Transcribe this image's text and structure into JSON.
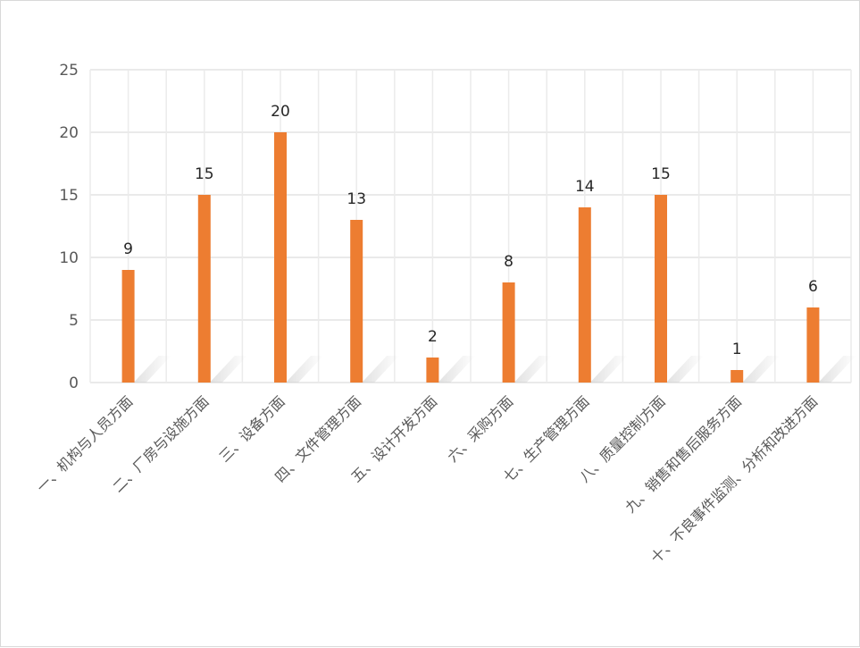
{
  "chart_data": {
    "type": "bar",
    "categories": [
      "一、机构与人员方面",
      "二、厂房与设施方面",
      "三、设备方面",
      "四、文件管理方面",
      "五、设计开发方面",
      "六、采购方面",
      "七、生产管理方面",
      "八、质量控制方面",
      "九、销售和售后服务方面",
      "十、不良事件监测、分析和改进方面"
    ],
    "values": [
      9,
      15,
      20,
      13,
      2,
      8,
      14,
      15,
      1,
      6
    ],
    "data_labels": [
      "9",
      "15",
      "20",
      "13",
      "2",
      "8",
      "14",
      "15",
      "1",
      "6"
    ],
    "y_ticks": [
      "0",
      "5",
      "10",
      "15",
      "20",
      "25"
    ],
    "ylim": [
      0,
      25
    ],
    "grid": true,
    "legend": "none",
    "title": "",
    "xlabel": "",
    "ylabel": "",
    "bar_color": "#ED7D31",
    "grid_color": "#e3e3e3"
  }
}
